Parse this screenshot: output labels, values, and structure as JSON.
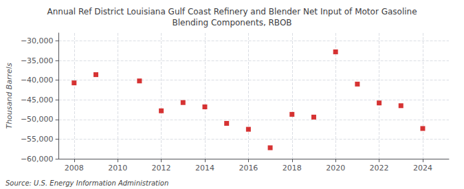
{
  "chart_data": {
    "type": "scatter",
    "title": "Annual Ref District Louisiana Gulf Coast Refinery and Blender Net Input of Motor Gasoline\nBlending Components, RBOB",
    "ylabel": "Thousand Barrels",
    "annotation": "Source: U.S. Energy Information Administration",
    "x": [
      2008,
      2009,
      2011,
      2012,
      2013,
      2014,
      2015,
      2016,
      2017,
      2018,
      2019,
      2020,
      2021,
      2022,
      2023,
      2024
    ],
    "values": [
      -40700,
      -38600,
      -40200,
      -47800,
      -45700,
      -46800,
      -51000,
      -52500,
      -57200,
      -48700,
      -49400,
      -32800,
      -41000,
      -45800,
      -46500,
      -52300
    ],
    "color": "#cc0000",
    "marker": "square",
    "xlim": [
      2007.3,
      2025.2
    ],
    "xticks": [
      2008,
      2010,
      2012,
      2014,
      2016,
      2018,
      2020,
      2022,
      2024
    ],
    "ylim": [
      -60000,
      -28000
    ],
    "yticks": [
      {
        "value": -60000,
        "label": "−60,000"
      },
      {
        "value": -55000,
        "label": "−55,000"
      },
      {
        "value": -50000,
        "label": "−50,000"
      },
      {
        "value": -45000,
        "label": "−45,000"
      },
      {
        "value": -40000,
        "label": "−40,000"
      },
      {
        "value": -35000,
        "label": "−35,000"
      },
      {
        "value": -30000,
        "label": "−30,000"
      }
    ],
    "grid": true
  }
}
